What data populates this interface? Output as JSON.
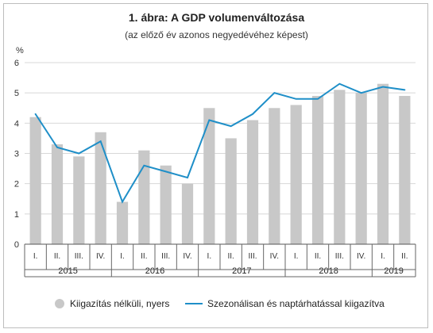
{
  "chart_data": {
    "type": "bar+line",
    "title": "1. ábra: A GDP volumenváltozása",
    "subtitle": "(az előző év azonos negyedévéhez képest)",
    "ylabel": "%",
    "ylim": [
      0,
      6
    ],
    "yticks": [
      "0",
      "1",
      "2",
      "3",
      "4",
      "5",
      "6"
    ],
    "grid": true,
    "legend_position": "bottom",
    "categories": [
      "I.",
      "II.",
      "III.",
      "IV.",
      "I.",
      "II.",
      "III.",
      "IV.",
      "I.",
      "II.",
      "III.",
      "IV.",
      "I.",
      "II.",
      "III.",
      "IV.",
      "I.",
      "II."
    ],
    "year_groups": [
      {
        "label": "2015",
        "count": 4
      },
      {
        "label": "2016",
        "count": 4
      },
      {
        "label": "2017",
        "count": 4
      },
      {
        "label": "2018",
        "count": 4
      },
      {
        "label": "2019",
        "count": 2
      }
    ],
    "series": [
      {
        "name": "Kiigazítás nélküli, nyers",
        "type": "bar",
        "color": "#c8c8c8",
        "values": [
          4.2,
          3.3,
          2.9,
          3.7,
          1.4,
          3.1,
          2.6,
          2.0,
          4.5,
          3.5,
          4.1,
          4.5,
          4.6,
          4.9,
          5.1,
          5.0,
          5.3,
          4.9
        ]
      },
      {
        "name": "Szezonálisan és naptárhatással kiigazítva",
        "type": "line",
        "color": "#1f8fc8",
        "values": [
          4.3,
          3.2,
          3.0,
          3.4,
          1.4,
          2.6,
          2.4,
          2.2,
          4.1,
          3.9,
          4.3,
          5.0,
          4.8,
          4.8,
          5.3,
          5.0,
          5.2,
          5.1
        ]
      }
    ]
  }
}
